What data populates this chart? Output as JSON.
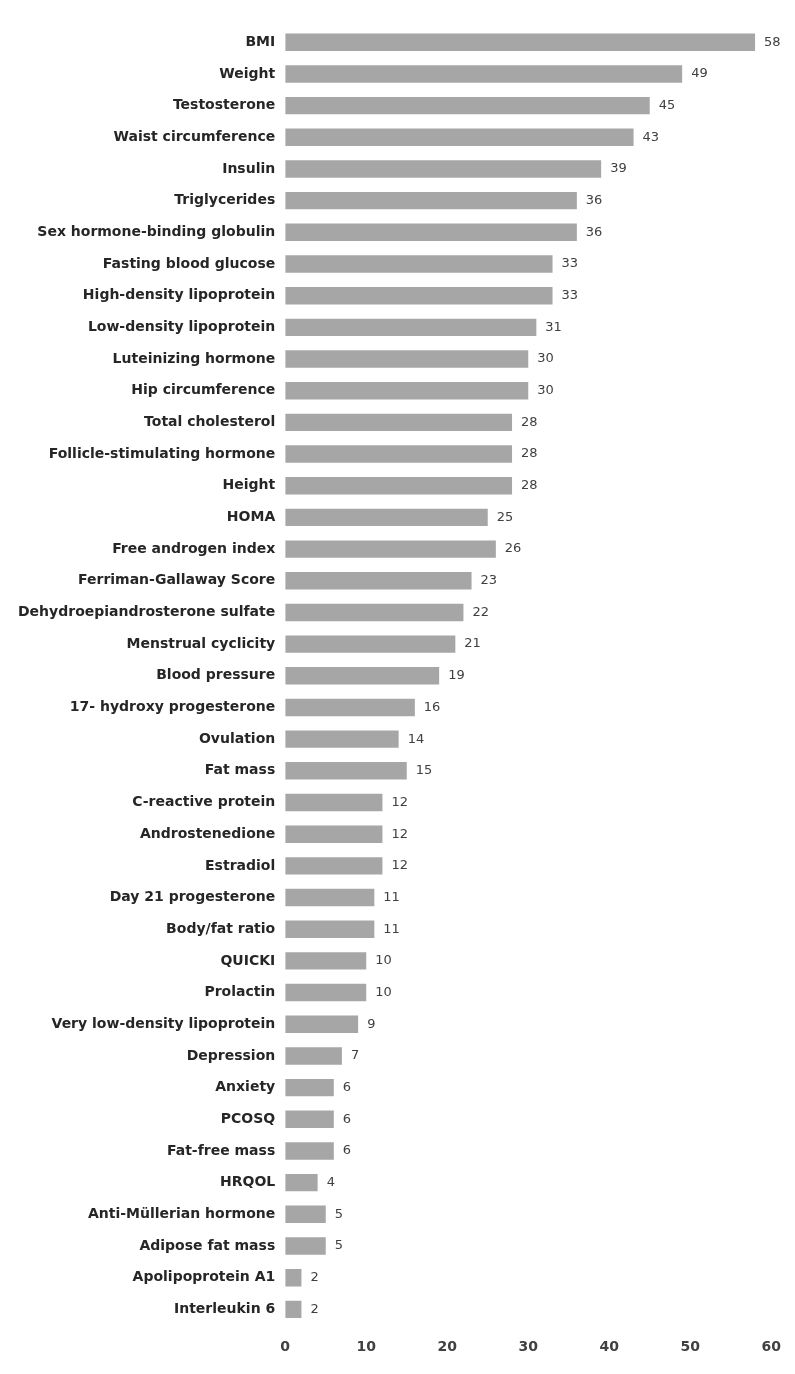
{
  "chart_data": {
    "type": "bar",
    "orientation": "horizontal",
    "categories": [
      "BMI",
      "Weight",
      "Testosterone",
      "Waist circumference",
      "Insulin",
      "Triglycerides",
      "Sex hormone-binding globulin",
      "Fasting blood glucose",
      "High-density lipoprotein",
      "Low-density lipoprotein",
      "Luteinizing hormone",
      "Hip circumference",
      "Total cholesterol",
      "Follicle-stimulating hormone",
      "Height",
      "HOMA",
      "Free androgen index",
      "Ferriman-Gallaway Score",
      "Dehydroepiandrosterone sulfate",
      "Menstrual cyclicity",
      "Blood pressure",
      "17- hydroxy progesterone",
      "Ovulation",
      "Fat mass",
      "C-reactive protein",
      "Androstenedione",
      "Estradiol",
      "Day 21 progesterone",
      "Body/fat ratio",
      "QUICKI",
      "Prolactin",
      "Very low-density lipoprotein",
      "Depression",
      "Anxiety",
      "PCOSQ",
      "Fat-free mass",
      "HRQOL",
      "Anti-Müllerian hormone",
      "Adipose fat mass",
      "Apolipoprotein A1",
      "Interleukin 6"
    ],
    "values": [
      58,
      49,
      45,
      43,
      39,
      36,
      36,
      33,
      33,
      31,
      30,
      30,
      28,
      28,
      28,
      25,
      26,
      23,
      22,
      21,
      19,
      16,
      14,
      15,
      12,
      12,
      12,
      11,
      11,
      10,
      10,
      9,
      7,
      6,
      6,
      6,
      4,
      5,
      5,
      2,
      2
    ],
    "color": "#a6a6a6",
    "xlim": [
      0,
      60
    ],
    "xticks": [
      0,
      10,
      20,
      30,
      40,
      50,
      60
    ],
    "grid": false,
    "legend": false,
    "data_labels": true
  }
}
